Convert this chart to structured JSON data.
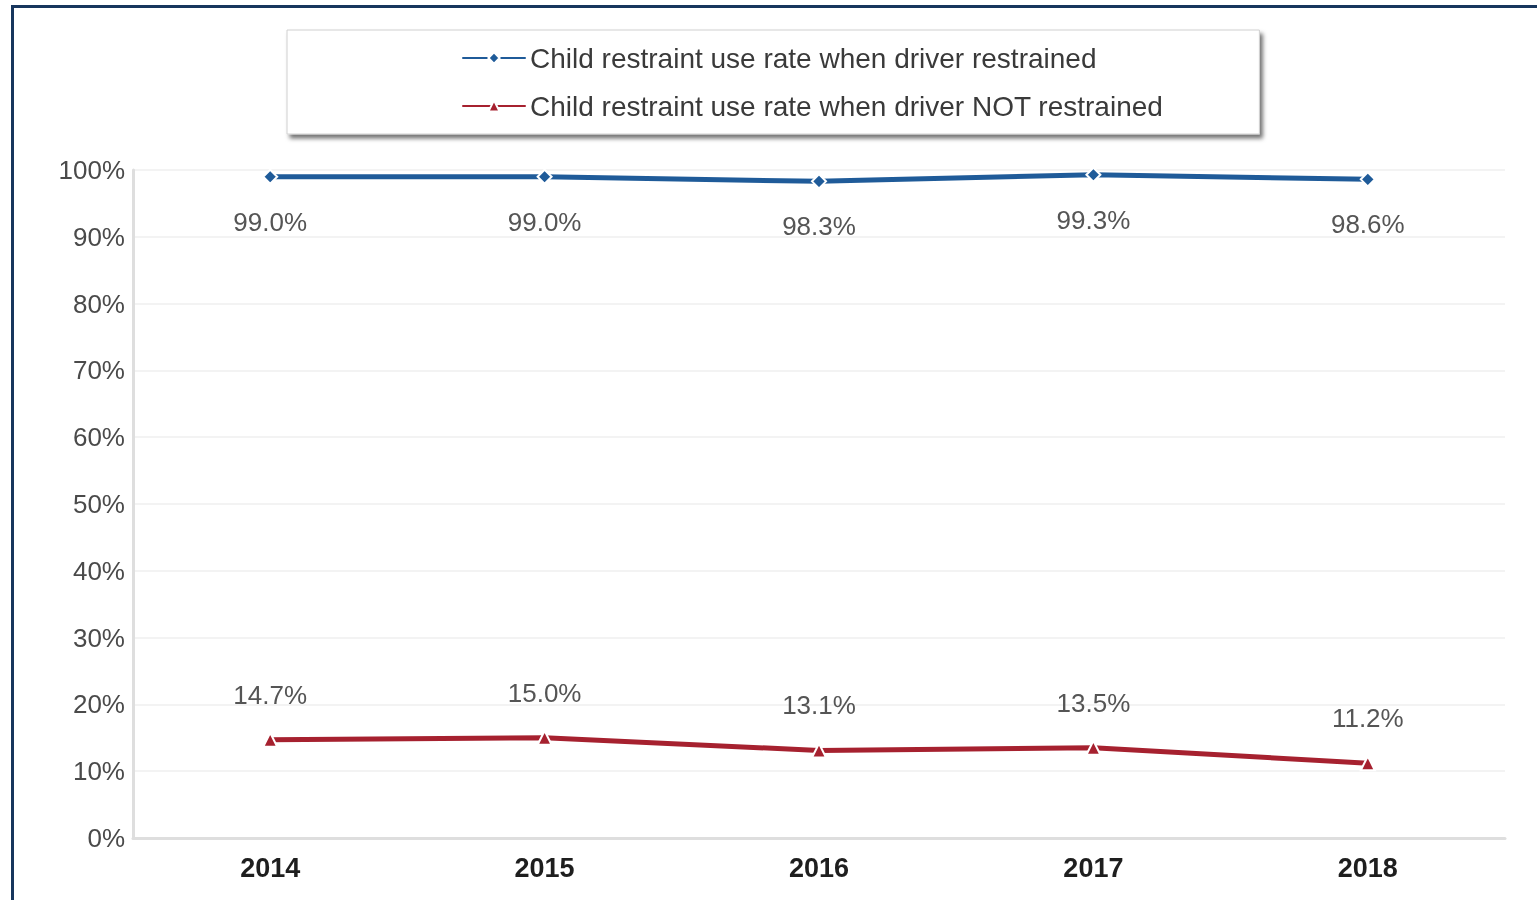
{
  "chart_data": {
    "type": "line",
    "categories": [
      "2014",
      "2015",
      "2016",
      "2017",
      "2018"
    ],
    "series": [
      {
        "name": "Child restraint use rate when driver restrained",
        "color": "#1f5b99",
        "marker": "diamond",
        "values": [
          99.0,
          99.0,
          98.3,
          99.3,
          98.6
        ],
        "value_labels": [
          "99.0%",
          "99.0%",
          "98.3%",
          "99.3%",
          "98.6%"
        ]
      },
      {
        "name": "Child restraint use rate when driver NOT restrained",
        "color": "#a6212f",
        "marker": "triangle",
        "values": [
          14.7,
          15.0,
          13.1,
          13.5,
          11.2
        ],
        "value_labels": [
          "14.7%",
          "15.0%",
          "13.1%",
          "13.5%",
          "11.2%"
        ]
      }
    ],
    "ylim": [
      0,
      100
    ],
    "yticks": [
      {
        "value": 0,
        "label": "0%"
      },
      {
        "value": 10,
        "label": "10%"
      },
      {
        "value": 20,
        "label": "20%"
      },
      {
        "value": 30,
        "label": "30%"
      },
      {
        "value": 40,
        "label": "40%"
      },
      {
        "value": 50,
        "label": "50%"
      },
      {
        "value": 60,
        "label": "60%"
      },
      {
        "value": 70,
        "label": "70%"
      },
      {
        "value": 80,
        "label": "80%"
      },
      {
        "value": 90,
        "label": "90%"
      },
      {
        "value": 100,
        "label": "100%"
      }
    ],
    "grid": "y",
    "legend": "top",
    "line_style": "solid"
  }
}
